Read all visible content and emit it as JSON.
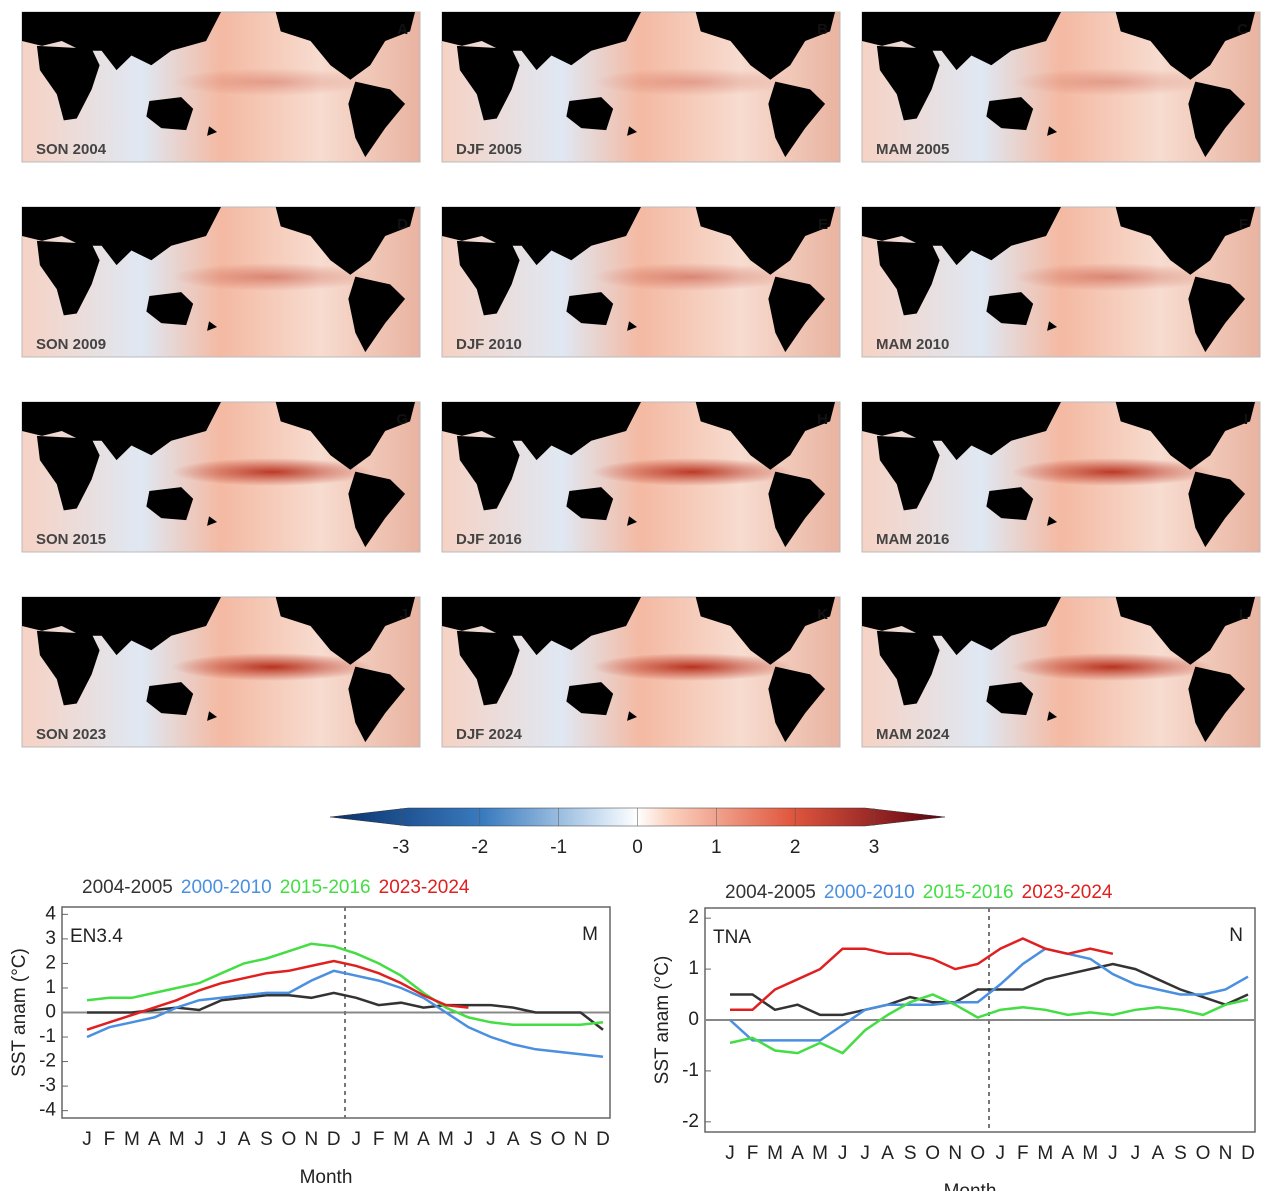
{
  "panels": [
    {
      "letter": "A",
      "label": "SON 2004"
    },
    {
      "letter": "B",
      "label": "DJF 2005"
    },
    {
      "letter": "C",
      "label": "MAM 2005"
    },
    {
      "letter": "D",
      "label": "SON 2009"
    },
    {
      "letter": "E",
      "label": "DJF 2010"
    },
    {
      "letter": "F",
      "label": "MAM 2010"
    },
    {
      "letter": "G",
      "label": "SON 2015"
    },
    {
      "letter": "H",
      "label": "DJF 2016"
    },
    {
      "letter": "I",
      "label": "MAM 2016"
    },
    {
      "letter": "J",
      "label": "SON 2023"
    },
    {
      "letter": "K",
      "label": "DJF 2024"
    },
    {
      "letter": "L",
      "label": "MAM 2024"
    }
  ],
  "colorbar": {
    "ticks": [
      -3,
      -2,
      -1,
      0,
      1,
      2,
      3
    ],
    "lim": [
      -3.9,
      3.9
    ]
  },
  "chart_data": [
    {
      "type": "line",
      "annotation": "EN3.4",
      "panel_letter": "M",
      "ylabel": "SST anam (°C)",
      "xlabel": "Month",
      "categories": [
        "J",
        "F",
        "M",
        "A",
        "M",
        "J",
        "J",
        "A",
        "S",
        "O",
        "N",
        "D",
        "J",
        "F",
        "M",
        "A",
        "M",
        "J",
        "J",
        "A",
        "S",
        "O",
        "N",
        "D"
      ],
      "ylim": [
        -4.3,
        4.3
      ],
      "yticks": [
        -4,
        -3,
        -2,
        -1,
        0,
        1,
        2,
        3,
        4
      ],
      "series": [
        {
          "name": "2004-2005",
          "color": "#333333",
          "values": [
            0.0,
            0.0,
            0.0,
            0.1,
            0.2,
            0.1,
            0.5,
            0.6,
            0.7,
            0.7,
            0.6,
            0.8,
            0.6,
            0.3,
            0.4,
            0.2,
            0.3,
            0.3,
            0.3,
            0.2,
            0.0,
            0.0,
            0.0,
            -0.7
          ]
        },
        {
          "name": "2000-2010",
          "color": "#4a8fe0",
          "values": [
            -1.0,
            -0.6,
            -0.4,
            -0.2,
            0.2,
            0.5,
            0.6,
            0.7,
            0.8,
            0.8,
            1.3,
            1.7,
            1.5,
            1.3,
            1.0,
            0.6,
            0.0,
            -0.6,
            -1.0,
            -1.3,
            -1.5,
            -1.6,
            -1.7,
            -1.8
          ]
        },
        {
          "name": "2015-2016",
          "color": "#44dd44",
          "values": [
            0.5,
            0.6,
            0.6,
            0.8,
            1.0,
            1.2,
            1.6,
            2.0,
            2.2,
            2.5,
            2.8,
            2.7,
            2.4,
            2.0,
            1.5,
            0.8,
            0.2,
            -0.2,
            -0.4,
            -0.5,
            -0.5,
            -0.5,
            -0.5,
            -0.4
          ]
        },
        {
          "name": "2023-2024",
          "color": "#e02020",
          "values": [
            -0.7,
            -0.4,
            -0.1,
            0.2,
            0.5,
            0.9,
            1.2,
            1.4,
            1.6,
            1.7,
            1.9,
            2.1,
            1.9,
            1.6,
            1.2,
            0.7,
            0.3,
            0.2,
            null,
            null,
            null,
            null,
            null,
            null
          ]
        }
      ]
    },
    {
      "type": "line",
      "annotation": "TNA",
      "panel_letter": "N",
      "ylabel": "SST anam (°C)",
      "xlabel": "Month",
      "categories": [
        "J",
        "F",
        "M",
        "A",
        "M",
        "J",
        "J",
        "A",
        "S",
        "O",
        "N",
        "O",
        "J",
        "F",
        "M",
        "A",
        "M",
        "J",
        "J",
        "A",
        "S",
        "O",
        "N",
        "D"
      ],
      "ylim": [
        -2.2,
        2.2
      ],
      "yticks": [
        -2,
        -1,
        0,
        1,
        2
      ],
      "series": [
        {
          "name": "2004-2005",
          "color": "#333333",
          "values": [
            0.5,
            0.5,
            0.2,
            0.3,
            0.1,
            0.1,
            0.2,
            0.3,
            0.45,
            0.35,
            0.35,
            0.6,
            0.6,
            0.6,
            0.8,
            0.9,
            1.0,
            1.1,
            1.0,
            0.8,
            0.6,
            0.45,
            0.3,
            0.5
          ]
        },
        {
          "name": "2000-2010",
          "color": "#4a8fe0",
          "values": [
            0.0,
            -0.4,
            -0.4,
            -0.4,
            -0.4,
            -0.1,
            0.2,
            0.3,
            0.3,
            0.3,
            0.35,
            0.35,
            0.7,
            1.1,
            1.4,
            1.3,
            1.2,
            0.9,
            0.7,
            0.6,
            0.5,
            0.5,
            0.6,
            0.85
          ]
        },
        {
          "name": "2015-2016",
          "color": "#44dd44",
          "values": [
            -0.45,
            -0.35,
            -0.6,
            -0.65,
            -0.45,
            -0.65,
            -0.2,
            0.1,
            0.35,
            0.5,
            0.3,
            0.05,
            0.2,
            0.25,
            0.2,
            0.1,
            0.15,
            0.1,
            0.2,
            0.25,
            0.2,
            0.1,
            0.3,
            0.4
          ]
        },
        {
          "name": "2023-2024",
          "color": "#e02020",
          "values": [
            0.2,
            0.2,
            0.6,
            0.8,
            1.0,
            1.4,
            1.4,
            1.3,
            1.3,
            1.2,
            1.0,
            1.1,
            1.4,
            1.6,
            1.4,
            1.3,
            1.4,
            1.3,
            null,
            null,
            null,
            null,
            null,
            null
          ]
        }
      ]
    }
  ]
}
